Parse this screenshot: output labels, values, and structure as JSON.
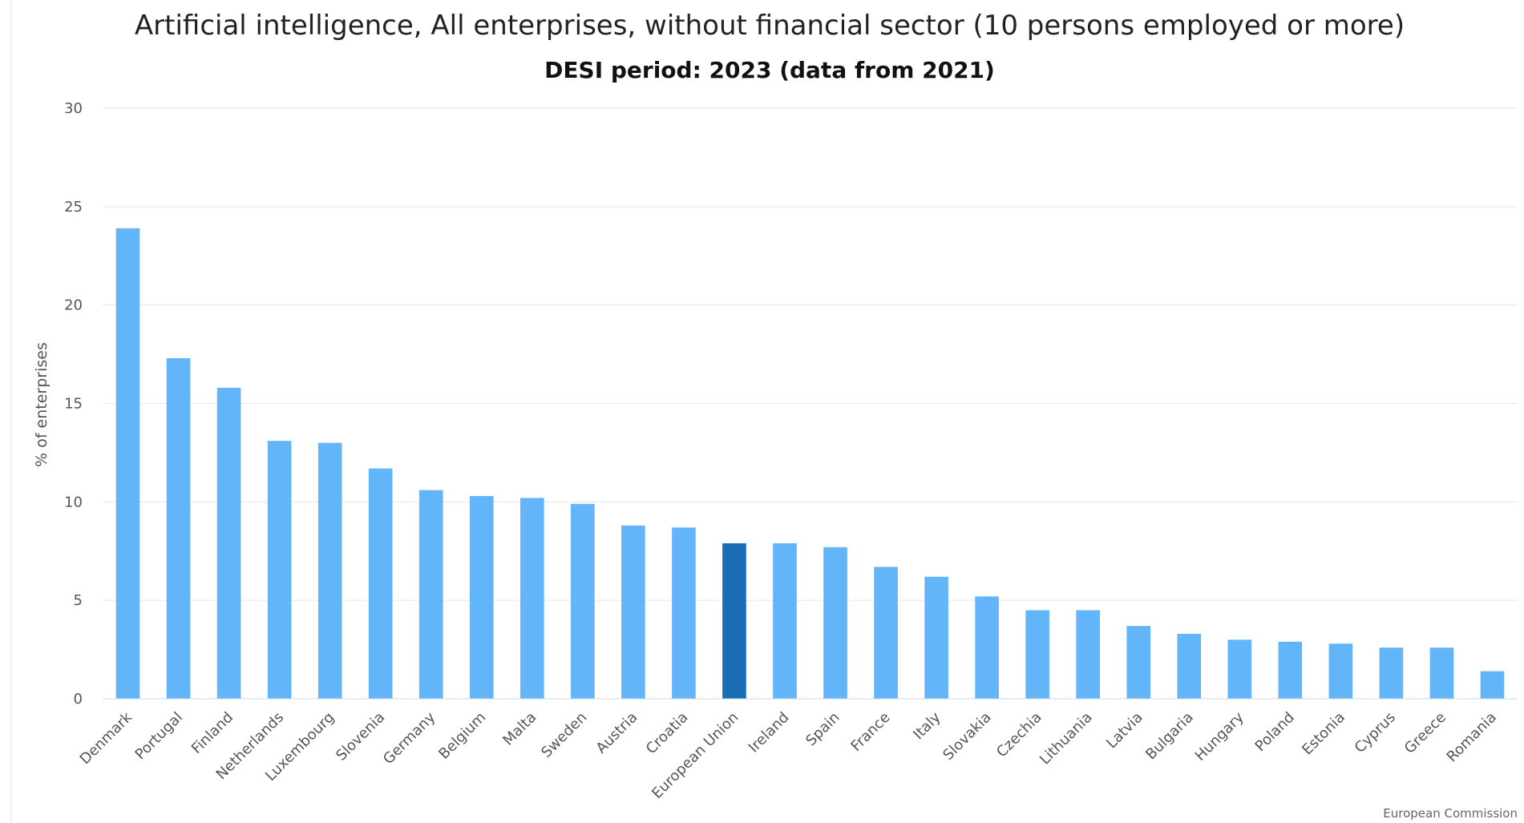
{
  "chart_data": {
    "type": "bar",
    "title": "Artificial intelligence, All enterprises, without financial sector (10 persons employed or more)",
    "subtitle": "DESI period: 2023 (data from 2021)",
    "xlabel": "",
    "ylabel": "% of enterprises",
    "ylim": [
      0,
      30
    ],
    "yticks": [
      0,
      5,
      10,
      15,
      20,
      25,
      30
    ],
    "grid": true,
    "legend": "none",
    "categories": [
      "Denmark",
      "Portugal",
      "Finland",
      "Netherlands",
      "Luxembourg",
      "Slovenia",
      "Germany",
      "Belgium",
      "Malta",
      "Sweden",
      "Austria",
      "Croatia",
      "European Union",
      "Ireland",
      "Spain",
      "France",
      "Italy",
      "Slovakia",
      "Czechia",
      "Lithuania",
      "Latvia",
      "Bulgaria",
      "Hungary",
      "Poland",
      "Estonia",
      "Cyprus",
      "Greece",
      "Romania"
    ],
    "values": [
      23.9,
      17.3,
      15.8,
      13.1,
      13.0,
      11.7,
      10.6,
      10.3,
      10.2,
      9.9,
      8.8,
      8.7,
      7.9,
      7.9,
      7.7,
      6.7,
      6.2,
      5.2,
      4.5,
      4.5,
      3.7,
      3.3,
      3.0,
      2.9,
      2.8,
      2.6,
      2.6,
      1.4
    ],
    "highlight_category": "European Union",
    "colors": {
      "bar": "#63b5fa",
      "highlight": "#1a6db4",
      "grid": "#e6e6e6",
      "baseline": "#ccd6eb"
    }
  },
  "credits": "European Commission"
}
